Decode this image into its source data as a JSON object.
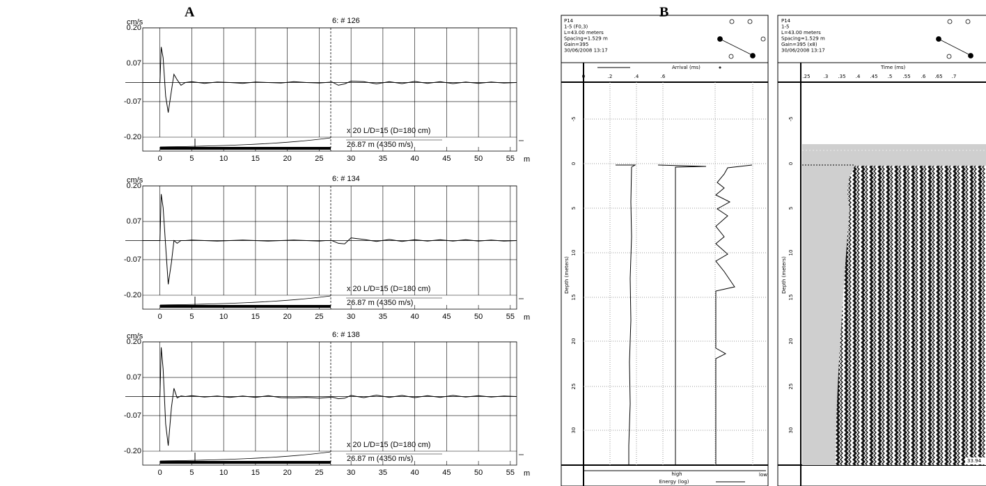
{
  "panel_labels": [
    "A",
    "B"
  ],
  "chart_data": [
    {
      "type": "line",
      "title": "6: # 126",
      "y_label": "cm/s",
      "x_label": "m",
      "color": "#000",
      "annotations": [
        "x 20  L/D=15 (D=180 cm)",
        "26.87 m (4350 m/s)"
      ],
      "x": [
        -2.7,
        0,
        0.2,
        0.5,
        0.9,
        1.3,
        1.8,
        2.2,
        2.7,
        3.3,
        4,
        5,
        7,
        9,
        11,
        13,
        15,
        17,
        19,
        21,
        23,
        25,
        26,
        27,
        28,
        29,
        30,
        32,
        34,
        36,
        38,
        40,
        42,
        44,
        46,
        48,
        50,
        52,
        54,
        56
      ],
      "values": [
        0,
        0,
        0.13,
        0.09,
        -0.05,
        -0.11,
        -0.03,
        0.03,
        0.01,
        -0.01,
        0,
        0.003,
        -0.003,
        0.002,
        0,
        -0.003,
        0.002,
        0,
        -0.002,
        0.003,
        0,
        -0.002,
        0,
        0.002,
        -0.01,
        -0.005,
        0.005,
        0.003,
        -0.005,
        0.003,
        -0.004,
        0.004,
        -0.003,
        0.003,
        -0.004,
        0.002,
        -0.003,
        0.002,
        -0.002,
        0
      ],
      "xlim": [
        -2.7,
        56
      ],
      "ylim": [
        -0.2,
        0.2
      ],
      "xticks": [
        0,
        5,
        10,
        15,
        20,
        25,
        30,
        35,
        40,
        45,
        50,
        55
      ],
      "yticks": [
        {
          "value": 0.2,
          "label": "0.20"
        },
        {
          "value": 0.07,
          "label": "0.07"
        },
        {
          "value": -0.07,
          "label": "-0.07"
        },
        {
          "value": -0.2,
          "label": "-0.20"
        }
      ],
      "grid": true
    },
    {
      "type": "line",
      "title": "6: # 134",
      "y_label": "cm/s",
      "x_label": "m",
      "color": "#000",
      "annotations": [
        "x 20  L/D=15 (D=180 cm)",
        "26.87 m (4350 m/s)"
      ],
      "x": [
        -2.7,
        0,
        0.2,
        0.5,
        0.9,
        1.3,
        1.8,
        2.2,
        2.7,
        3.3,
        4,
        5,
        7,
        9,
        11,
        13,
        15,
        17,
        19,
        21,
        23,
        25,
        26,
        27,
        28,
        29,
        30,
        32,
        34,
        36,
        38,
        40,
        42,
        44,
        46,
        48,
        50,
        52,
        54,
        56
      ],
      "values": [
        0,
        0,
        0.17,
        0.12,
        -0.02,
        -0.16,
        -0.08,
        0,
        -0.01,
        0,
        0,
        0.002,
        0,
        -0.002,
        0,
        0.002,
        0,
        -0.002,
        0,
        0.002,
        0,
        -0.002,
        0,
        0,
        -0.01,
        -0.012,
        0.01,
        0.004,
        -0.003,
        0.004,
        -0.003,
        0.003,
        -0.002,
        0.003,
        -0.002,
        0.003,
        -0.002,
        0.002,
        -0.002,
        0
      ],
      "xlim": [
        -2.7,
        56
      ],
      "ylim": [
        -0.2,
        0.2
      ],
      "xticks": [
        0,
        5,
        10,
        15,
        20,
        25,
        30,
        35,
        40,
        45,
        50,
        55
      ],
      "yticks": [
        {
          "value": 0.2,
          "label": "0.20"
        },
        {
          "value": 0.07,
          "label": "0.07"
        },
        {
          "value": -0.07,
          "label": "-0.07"
        },
        {
          "value": -0.2,
          "label": "-0.20"
        }
      ],
      "grid": true
    },
    {
      "type": "line",
      "title": "6: # 138",
      "y_label": "cm/s",
      "x_label": "m",
      "color": "#000",
      "annotations": [
        "x 20  L/D=15 (D=180 cm)",
        "26.87 m (4350 m/s)"
      ],
      "x": [
        -2.7,
        0,
        0.2,
        0.5,
        0.9,
        1.3,
        1.8,
        2.2,
        2.7,
        3.3,
        4,
        5,
        7,
        9,
        11,
        13,
        15,
        17,
        19,
        21,
        23,
        25,
        26,
        27,
        28,
        29,
        30,
        32,
        34,
        36,
        38,
        40,
        42,
        44,
        46,
        48,
        50,
        52,
        54,
        56
      ],
      "values": [
        0,
        0,
        0.18,
        0.1,
        -0.1,
        -0.18,
        -0.04,
        0.03,
        -0.005,
        0.002,
        0,
        0.003,
        -0.002,
        0.002,
        -0.003,
        0.002,
        -0.003,
        0.003,
        -0.004,
        -0.005,
        -0.003,
        -0.006,
        -0.004,
        -0.002,
        -0.008,
        -0.006,
        0.004,
        -0.004,
        0.005,
        -0.003,
        0.004,
        -0.004,
        0.003,
        -0.003,
        0.004,
        -0.002,
        0.003,
        -0.002,
        0.002,
        0
      ],
      "xlim": [
        -2.7,
        56
      ],
      "ylim": [
        -0.2,
        0.2
      ],
      "xticks": [
        0,
        5,
        10,
        15,
        20,
        25,
        30,
        35,
        40,
        45,
        50,
        55
      ],
      "yticks": [
        {
          "value": 0.2,
          "label": "0.20"
        },
        {
          "value": 0.07,
          "label": "0.07"
        },
        {
          "value": -0.07,
          "label": "-0.07"
        },
        {
          "value": -0.2,
          "label": "-0.20"
        }
      ],
      "grid": true
    }
  ],
  "panel_b": {
    "header_left": [
      "P14",
      "1-5 (F0,3)",
      "L=43.00 meters",
      "Spacing=1.529 m",
      "Gain=395",
      "30/06/2008 13:17"
    ],
    "header_right": [
      "P14",
      "1-5",
      "L=43.00 meters",
      "Spacing=1.529 m",
      "Gain=395 (x8)",
      "30/06/2008 13:17"
    ],
    "arrival_label": "Arrival (ms)",
    "arrival_ticks": [
      "0",
      ".2",
      ".4",
      ".6"
    ],
    "depth_label": "Depth (meters)",
    "depth_ticks": [
      "-5",
      "0",
      "5",
      "10",
      "15",
      "20",
      "25",
      "30"
    ],
    "energy_high": "high",
    "energy_low": "low",
    "energy_label": "Energy (log)",
    "time_label": "Time (ms)",
    "time_ticks": [
      ".25",
      ".3",
      ".35",
      ".4",
      ".45",
      ".5",
      ".55",
      ".6",
      ".65",
      ".7"
    ],
    "end_depth": "33.94"
  }
}
